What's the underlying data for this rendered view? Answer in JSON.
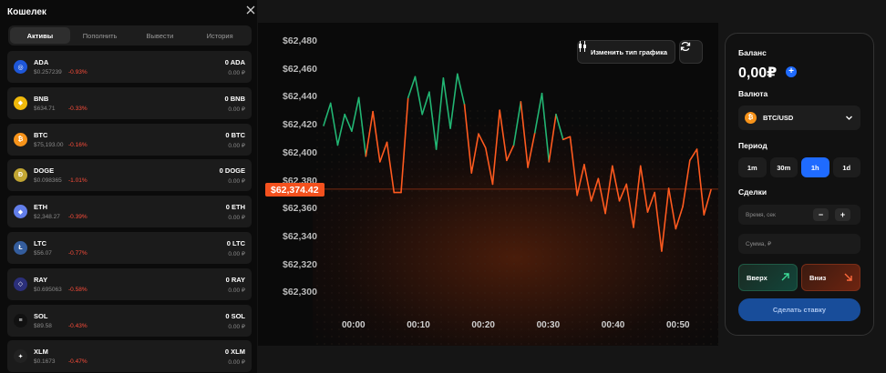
{
  "wallet": {
    "title": "Кошелек",
    "tabs": [
      "Активы",
      "Пополнить",
      "Вывести",
      "История"
    ],
    "assets": [
      {
        "symbol": "ADA",
        "price": "$0.257239",
        "change": "-0.93%",
        "balance": "0 ADA",
        "rub": "0.00 ₽",
        "icon": "ada-icon",
        "color": "#1e57d8",
        "glyph": "◎"
      },
      {
        "symbol": "BNB",
        "price": "$634.71",
        "change": "-0.33%",
        "balance": "0 BNB",
        "rub": "0.00 ₽",
        "icon": "bnb-icon",
        "color": "#f0b90b",
        "glyph": "◆"
      },
      {
        "symbol": "BTC",
        "price": "$75,193.00",
        "change": "-0.16%",
        "balance": "0 BTC",
        "rub": "0.00 ₽",
        "icon": "btc-icon",
        "color": "#f7931a",
        "glyph": "₿"
      },
      {
        "symbol": "DOGE",
        "price": "$0.098365",
        "change": "-1.01%",
        "balance": "0 DOGE",
        "rub": "0.00 ₽",
        "icon": "doge-icon",
        "color": "#c2a633",
        "glyph": "Ð"
      },
      {
        "symbol": "ETH",
        "price": "$2,348.27",
        "change": "-0.39%",
        "balance": "0 ETH",
        "rub": "0.00 ₽",
        "icon": "eth-icon",
        "color": "#627eea",
        "glyph": "◆"
      },
      {
        "symbol": "LTC",
        "price": "$56.07",
        "change": "-0.77%",
        "balance": "0 LTC",
        "rub": "0.00 ₽",
        "icon": "ltc-icon",
        "color": "#345d9d",
        "glyph": "Ł"
      },
      {
        "symbol": "RAY",
        "price": "$0.695063",
        "change": "-0.58%",
        "balance": "0 RAY",
        "rub": "0.00 ₽",
        "icon": "ray-icon",
        "color": "#2b2f7a",
        "glyph": "◇"
      },
      {
        "symbol": "SOL",
        "price": "$89.58",
        "change": "-0.43%",
        "balance": "0 SOL",
        "rub": "0.00 ₽",
        "icon": "sol-icon",
        "color": "#111111",
        "glyph": "≡"
      },
      {
        "symbol": "XLM",
        "price": "$0.1673",
        "change": "-0.47%",
        "balance": "0 XLM",
        "rub": "0.00 ₽",
        "icon": "xlm-icon",
        "color": "#222222",
        "glyph": "✦"
      }
    ]
  },
  "chart": {
    "current_price": "$62,374.42",
    "change_type_label": "Изменить тип графика",
    "up_color": "#22b573",
    "down_color": "#ff5a1f"
  },
  "chart_data": {
    "type": "line",
    "title": "",
    "xlabel": "",
    "ylabel": "",
    "y_ticks": [
      "$62,480",
      "$62,460",
      "$62,440",
      "$62,420",
      "$62,400",
      "$62,380",
      "$62,360",
      "$62,340",
      "$62,320",
      "$62,300"
    ],
    "x_ticks": [
      "00:00",
      "00:10",
      "00:20",
      "00:30",
      "00:40",
      "00:50"
    ],
    "ylim": [
      62300,
      62480
    ],
    "xlim": [
      0,
      55
    ],
    "grid": false,
    "series": [
      {
        "x": [
          0,
          1,
          2,
          3,
          4,
          5,
          6,
          7,
          8,
          9,
          10,
          11,
          12,
          13,
          14,
          15,
          16,
          17,
          18,
          19,
          20,
          21,
          22,
          23,
          24,
          25,
          26,
          27,
          28,
          29,
          30,
          31,
          32,
          33,
          34,
          35,
          36,
          37,
          38,
          39,
          40,
          41,
          42,
          43,
          44,
          45,
          46,
          47,
          48,
          49,
          50,
          51,
          52,
          53,
          54,
          55
        ],
        "values": [
          62420,
          62436,
          62406,
          62428,
          62416,
          62440,
          62398,
          62430,
          62394,
          62408,
          62372,
          62372,
          62440,
          62455,
          62428,
          62444,
          62403,
          62454,
          62418,
          62457,
          62435,
          62386,
          62414,
          62404,
          62378,
          62431,
          62395,
          62406,
          62437,
          62390,
          62415,
          62443,
          62394,
          62428,
          62410,
          62412,
          62370,
          62392,
          62366,
          62382,
          62357,
          62391,
          62366,
          62378,
          62347,
          62391,
          62358,
          62372,
          62330,
          62375,
          62346,
          62362,
          62395,
          62403,
          62356,
          62374
        ]
      }
    ]
  },
  "panel": {
    "balance_label": "Баланс",
    "balance_value": "0,00₽",
    "currency_label": "Валюта",
    "currency_value": "BTC/USD",
    "period_label": "Период",
    "periods": [
      "1m",
      "30m",
      "1h",
      "1d"
    ],
    "trades_label": "Сделки",
    "time_placeholder": "Время, сек",
    "amount_placeholder": "Сумма, ₽",
    "up_label": "Вверх",
    "down_label": "Вниз",
    "bet_label": "Сделать ставку"
  }
}
